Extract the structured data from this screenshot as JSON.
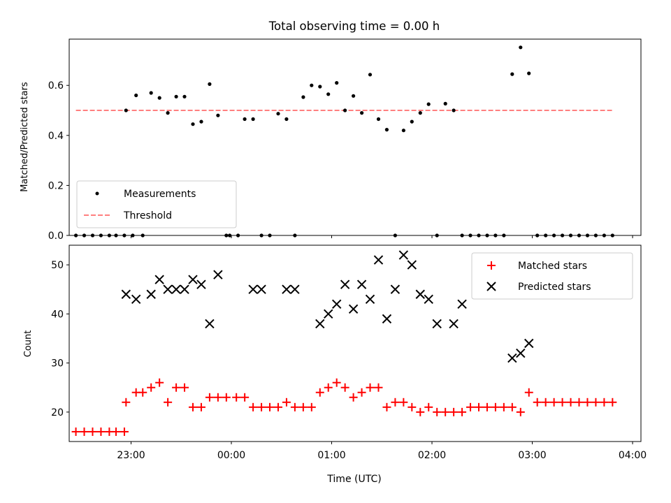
{
  "chart_data": [
    {
      "type": "scatter",
      "title": "Total observing time = 0.00 h",
      "ylabel": "Matched/Predicted stars",
      "xlabel": "",
      "xlim": [
        "22:23",
        "04:05"
      ],
      "ylim": [
        0,
        0.785
      ],
      "yticks": [
        0.0,
        0.2,
        0.4,
        0.6
      ],
      "ytick_labels": [
        "0.0",
        "0.2",
        "0.4",
        "0.6"
      ],
      "grid": false,
      "legend_position": "lower-left",
      "series": [
        {
          "name": "Measurements",
          "color": "#000000",
          "marker": "dot",
          "x": [
            "22:27",
            "22:32",
            "22:37",
            "22:42",
            "22:47",
            "22:51",
            "22:56",
            "23:01",
            "22:57",
            "23:03",
            "23:07",
            "23:12",
            "23:17",
            "23:22",
            "23:27",
            "23:32",
            "23:37",
            "23:42",
            "23:47",
            "23:52",
            "23:57",
            "23:59",
            "00:04",
            "00:08",
            "00:13",
            "00:18",
            "00:23",
            "00:28",
            "00:33",
            "00:38",
            "00:43",
            "00:48",
            "00:53",
            "00:58",
            "01:03",
            "01:08",
            "01:13",
            "01:18",
            "01:23",
            "01:28",
            "01:33",
            "01:38",
            "01:43",
            "01:48",
            "01:53",
            "01:58",
            "02:03",
            "02:08",
            "02:13",
            "02:18",
            "02:23",
            "02:28",
            "02:33",
            "02:38",
            "02:43",
            "02:48",
            "02:53",
            "02:58",
            "03:03",
            "03:08",
            "03:13",
            "03:18",
            "03:23",
            "03:28",
            "03:33",
            "03:38",
            "03:43",
            "03:48"
          ],
          "y": [
            0,
            0,
            0,
            0,
            0,
            0,
            0,
            0,
            0.5,
            0.56,
            0,
            0.57,
            0.55,
            0.49,
            0.555,
            0.555,
            0.445,
            0.455,
            0.605,
            0.48,
            0,
            0,
            0,
            0.465,
            0.465,
            0,
            0,
            0.487,
            0.465,
            0,
            0.553,
            0.6,
            0.595,
            0.565,
            0.61,
            0.5,
            0.558,
            0.49,
            0.643,
            0.465,
            0.423,
            0,
            0.42,
            0.455,
            0.49,
            0.525,
            0,
            0.527,
            0.5,
            0,
            0,
            0,
            0,
            0,
            0,
            0.645,
            0.752,
            0.648,
            0,
            0,
            0,
            0,
            0,
            0,
            0,
            0,
            0,
            0
          ]
        },
        {
          "name": "Threshold",
          "color": "#ff7f7f",
          "style": "dashed",
          "x": [
            "22:27",
            "03:48"
          ],
          "y": [
            0.5,
            0.5
          ]
        }
      ]
    },
    {
      "type": "scatter",
      "title": "",
      "xlabel": "Time (UTC)",
      "ylabel": "Count",
      "xlim": [
        "22:23",
        "04:05"
      ],
      "ylim": [
        14,
        54
      ],
      "xticks": [
        "23:00",
        "00:00",
        "01:00",
        "02:00",
        "03:00",
        "04:00"
      ],
      "xtick_labels": [
        "23:00",
        "00:00",
        "01:00",
        "02:00",
        "03:00",
        "04:00"
      ],
      "yticks": [
        20,
        30,
        40,
        50
      ],
      "ytick_labels": [
        "20",
        "30",
        "40",
        "50"
      ],
      "grid": false,
      "legend_position": "top-right",
      "series": [
        {
          "name": "Matched stars",
          "color": "#ff0000",
          "marker": "plus",
          "x": [
            "22:27",
            "22:32",
            "22:37",
            "22:42",
            "22:47",
            "22:51",
            "22:56",
            "22:57",
            "23:03",
            "23:07",
            "23:12",
            "23:17",
            "23:22",
            "23:27",
            "23:32",
            "23:37",
            "23:42",
            "23:47",
            "23:52",
            "23:57",
            "00:03",
            "00:08",
            "00:13",
            "00:18",
            "00:23",
            "00:28",
            "00:33",
            "00:38",
            "00:43",
            "00:48",
            "00:53",
            "00:58",
            "01:03",
            "01:08",
            "01:13",
            "01:18",
            "01:23",
            "01:28",
            "01:33",
            "01:38",
            "01:43",
            "01:48",
            "01:53",
            "01:58",
            "02:03",
            "02:08",
            "02:13",
            "02:18",
            "02:23",
            "02:28",
            "02:33",
            "02:38",
            "02:43",
            "02:48",
            "02:53",
            "02:58",
            "03:03",
            "03:08",
            "03:13",
            "03:18",
            "03:23",
            "03:28",
            "03:33",
            "03:38",
            "03:43",
            "03:48"
          ],
          "y": [
            16,
            16,
            16,
            16,
            16,
            16,
            16,
            22,
            24,
            24,
            25,
            26,
            22,
            25,
            25,
            21,
            21,
            23,
            23,
            23,
            23,
            23,
            21,
            21,
            21,
            21,
            22,
            21,
            21,
            21,
            24,
            25,
            26,
            25,
            23,
            24,
            25,
            25,
            21,
            22,
            22,
            21,
            20,
            21,
            20,
            20,
            20,
            20,
            21,
            21,
            21,
            21,
            21,
            21,
            20,
            24,
            22,
            22,
            22,
            22,
            22,
            22,
            22,
            22,
            22,
            22
          ]
        },
        {
          "name": "Predicted stars",
          "color": "#000000",
          "marker": "x",
          "x": [
            "22:57",
            "23:03",
            "23:12",
            "23:17",
            "23:22",
            "23:27",
            "23:32",
            "23:37",
            "23:42",
            "23:47",
            "23:52",
            "00:13",
            "00:18",
            "00:33",
            "00:38",
            "00:53",
            "00:58",
            "01:03",
            "01:08",
            "01:13",
            "01:18",
            "01:23",
            "01:28",
            "01:33",
            "01:38",
            "01:43",
            "01:48",
            "01:53",
            "01:58",
            "02:03",
            "02:13",
            "02:18",
            "02:48",
            "02:53",
            "02:58"
          ],
          "y": [
            44,
            43,
            44,
            47,
            45,
            45,
            45,
            47,
            46,
            38,
            48,
            45,
            45,
            45,
            45,
            38,
            40,
            42,
            46,
            41,
            46,
            43,
            51,
            39,
            45,
            52,
            50,
            44,
            43,
            38,
            38,
            42,
            31,
            32,
            34
          ]
        }
      ]
    }
  ]
}
